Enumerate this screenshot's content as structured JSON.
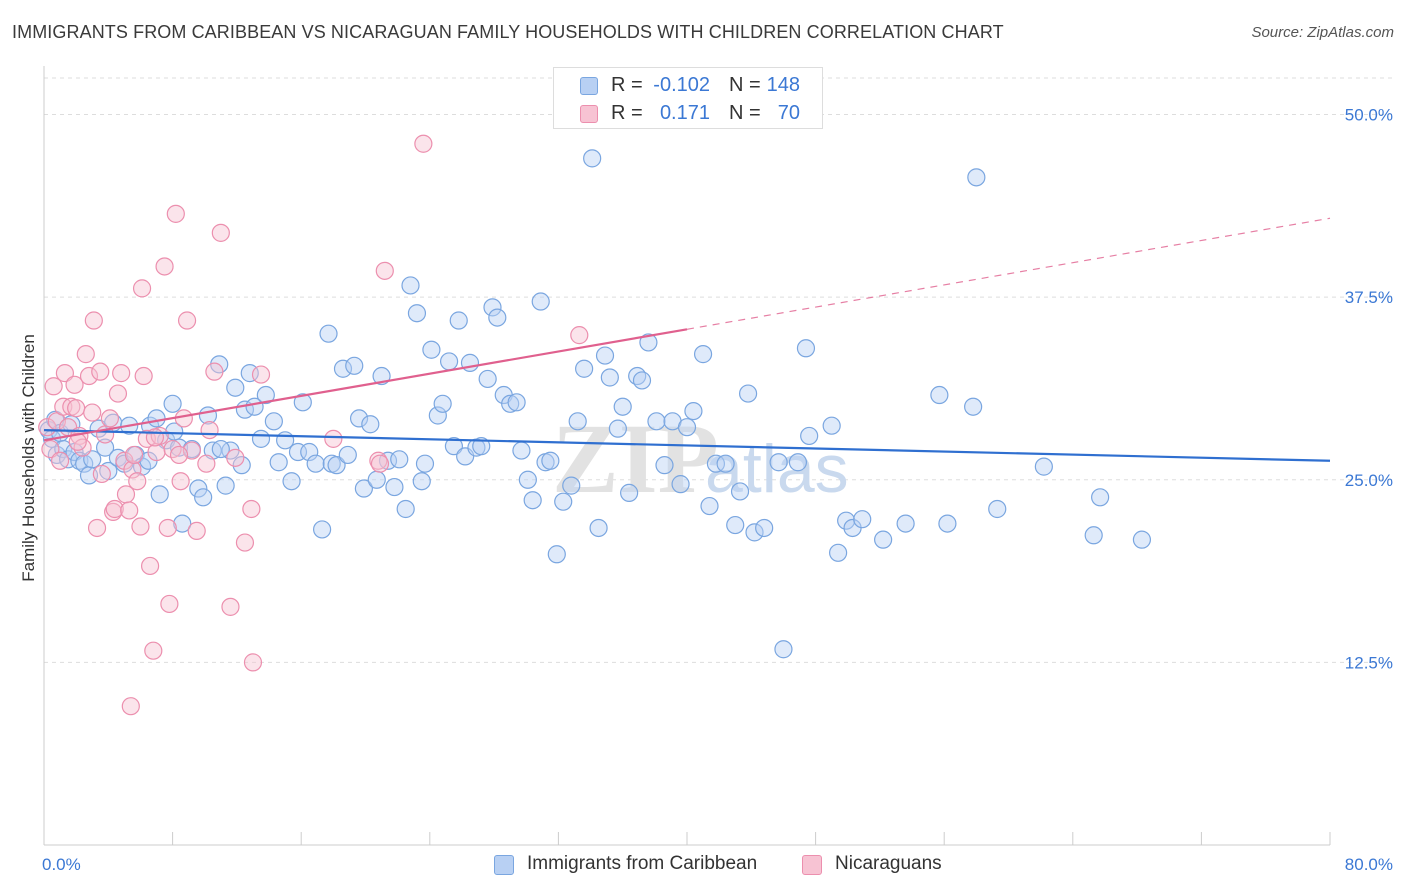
{
  "header": {
    "title": "IMMIGRANTS FROM CARIBBEAN VS NICARAGUAN FAMILY HOUSEHOLDS WITH CHILDREN CORRELATION CHART",
    "source": "Source: ZipAtlas.com"
  },
  "watermark": {
    "zip": "ZIP",
    "atlas": "atlas"
  },
  "legend_top": {
    "rows": [
      {
        "r_label": "R =",
        "r_value": "-0.102",
        "n_label": "N =",
        "n_value": "148"
      },
      {
        "r_label": "R =",
        "r_value": "0.171",
        "n_label": "N =",
        "n_value": "70"
      }
    ]
  },
  "legend_bottom": {
    "items": [
      {
        "label": "Immigrants from Caribbean"
      },
      {
        "label": "Nicaraguans"
      }
    ]
  },
  "colors": {
    "blue_fill": "#b8d0f3",
    "blue_stroke": "#7aa6e0",
    "blue_line": "#2f6fd0",
    "pink_fill": "#f7c3d3",
    "pink_stroke": "#ec8fae",
    "pink_line": "#e0608e",
    "grid": "#dddddd",
    "axis_text": "#3b78d4"
  },
  "chart_data": {
    "type": "scatter",
    "title": "IMMIGRANTS FROM CARIBBEAN VS NICARAGUAN FAMILY HOUSEHOLDS WITH CHILDREN CORRELATION CHART",
    "xlabel": "",
    "ylabel": "Family Households with Children",
    "xlim": [
      0,
      80
    ],
    "ylim": [
      0,
      52.5
    ],
    "x_tick_labels": [
      "0.0%",
      "80.0%"
    ],
    "y_ticks": [
      12.5,
      25.0,
      37.5,
      50.0
    ],
    "y_tick_labels": [
      "12.5%",
      "25.0%",
      "37.5%",
      "50.0%"
    ],
    "grid": true,
    "series": [
      {
        "name": "Immigrants from Caribbean",
        "R": -0.102,
        "N": 148,
        "trend": {
          "x": [
            0,
            80
          ],
          "y": [
            28.4,
            26.3
          ],
          "dashed_from": null
        },
        "points": [
          [
            0.3,
            28.4
          ],
          [
            0.5,
            27.8
          ],
          [
            0.7,
            29.1
          ],
          [
            0.8,
            26.7
          ],
          [
            1.0,
            28.2
          ],
          [
            1.2,
            27.1
          ],
          [
            1.5,
            26.4
          ],
          [
            1.7,
            28.8
          ],
          [
            1.9,
            26.9
          ],
          [
            2.2,
            26.3
          ],
          [
            2.5,
            26.1
          ],
          [
            2.8,
            25.3
          ],
          [
            3.0,
            26.4
          ],
          [
            3.4,
            28.5
          ],
          [
            3.8,
            27.2
          ],
          [
            4.0,
            25.6
          ],
          [
            4.3,
            28.9
          ],
          [
            4.6,
            26.5
          ],
          [
            5.0,
            26.1
          ],
          [
            5.3,
            28.7
          ],
          [
            5.7,
            26.7
          ],
          [
            6.1,
            25.9
          ],
          [
            6.6,
            28.7
          ],
          [
            7.0,
            29.2
          ],
          [
            7.2,
            24.0
          ],
          [
            7.6,
            27.7
          ],
          [
            8.0,
            30.2
          ],
          [
            8.4,
            27.2
          ],
          [
            8.6,
            22.0
          ],
          [
            9.2,
            27.1
          ],
          [
            9.6,
            24.4
          ],
          [
            9.9,
            23.8
          ],
          [
            10.2,
            29.4
          ],
          [
            10.5,
            27.0
          ],
          [
            10.9,
            32.9
          ],
          [
            11.3,
            24.6
          ],
          [
            11.6,
            27.0
          ],
          [
            11.9,
            31.3
          ],
          [
            12.3,
            26.0
          ],
          [
            12.5,
            29.8
          ],
          [
            12.8,
            32.3
          ],
          [
            13.1,
            30.0
          ],
          [
            13.5,
            27.8
          ],
          [
            13.8,
            30.8
          ],
          [
            14.3,
            29.0
          ],
          [
            14.6,
            26.2
          ],
          [
            15.0,
            27.7
          ],
          [
            15.4,
            24.9
          ],
          [
            15.8,
            26.9
          ],
          [
            16.1,
            30.3
          ],
          [
            16.5,
            26.9
          ],
          [
            16.9,
            26.1
          ],
          [
            17.3,
            21.6
          ],
          [
            17.7,
            35.0
          ],
          [
            17.9,
            26.1
          ],
          [
            18.2,
            26.0
          ],
          [
            18.6,
            32.6
          ],
          [
            18.9,
            26.7
          ],
          [
            19.3,
            32.8
          ],
          [
            19.6,
            29.2
          ],
          [
            19.9,
            24.4
          ],
          [
            20.3,
            28.8
          ],
          [
            20.7,
            25.0
          ],
          [
            21.0,
            32.1
          ],
          [
            21.4,
            26.3
          ],
          [
            21.8,
            24.5
          ],
          [
            22.1,
            26.4
          ],
          [
            22.5,
            23.0
          ],
          [
            22.8,
            38.3
          ],
          [
            23.2,
            36.4
          ],
          [
            23.5,
            24.9
          ],
          [
            23.7,
            26.1
          ],
          [
            24.1,
            33.9
          ],
          [
            24.5,
            29.4
          ],
          [
            24.8,
            30.2
          ],
          [
            25.2,
            33.1
          ],
          [
            25.5,
            27.3
          ],
          [
            25.8,
            35.9
          ],
          [
            26.2,
            26.6
          ],
          [
            26.5,
            33.0
          ],
          [
            26.9,
            27.2
          ],
          [
            27.2,
            27.3
          ],
          [
            27.6,
            31.9
          ],
          [
            27.9,
            36.8
          ],
          [
            28.2,
            36.1
          ],
          [
            28.6,
            30.8
          ],
          [
            29.0,
            30.2
          ],
          [
            29.4,
            30.3
          ],
          [
            29.7,
            27.0
          ],
          [
            30.1,
            25.0
          ],
          [
            30.4,
            23.6
          ],
          [
            30.9,
            37.2
          ],
          [
            31.2,
            26.2
          ],
          [
            31.5,
            26.3
          ],
          [
            31.9,
            19.9
          ],
          [
            32.3,
            23.5
          ],
          [
            32.8,
            24.6
          ],
          [
            33.2,
            29.0
          ],
          [
            33.6,
            32.6
          ],
          [
            34.1,
            47.0
          ],
          [
            34.5,
            21.7
          ],
          [
            34.9,
            33.5
          ],
          [
            35.2,
            32.0
          ],
          [
            35.7,
            28.5
          ],
          [
            36.0,
            30.0
          ],
          [
            36.4,
            24.1
          ],
          [
            36.9,
            32.1
          ],
          [
            37.2,
            31.8
          ],
          [
            37.6,
            34.4
          ],
          [
            38.1,
            29.0
          ],
          [
            38.6,
            26.0
          ],
          [
            39.1,
            29.0
          ],
          [
            39.6,
            24.7
          ],
          [
            40.0,
            28.6
          ],
          [
            40.4,
            29.7
          ],
          [
            41.0,
            33.6
          ],
          [
            41.4,
            23.2
          ],
          [
            41.8,
            26.1
          ],
          [
            42.4,
            26.1
          ],
          [
            43.0,
            21.9
          ],
          [
            43.3,
            24.2
          ],
          [
            43.8,
            30.9
          ],
          [
            44.2,
            21.4
          ],
          [
            44.8,
            21.7
          ],
          [
            45.7,
            26.2
          ],
          [
            46.0,
            13.4
          ],
          [
            46.9,
            26.2
          ],
          [
            47.4,
            34.0
          ],
          [
            47.6,
            28.0
          ],
          [
            49.0,
            28.7
          ],
          [
            49.4,
            20.0
          ],
          [
            49.9,
            22.2
          ],
          [
            50.3,
            21.7
          ],
          [
            50.9,
            22.3
          ],
          [
            52.2,
            20.9
          ],
          [
            53.6,
            22.0
          ],
          [
            55.7,
            30.8
          ],
          [
            56.2,
            22.0
          ],
          [
            57.8,
            30.0
          ],
          [
            58.0,
            45.7
          ],
          [
            59.3,
            23.0
          ],
          [
            62.2,
            25.9
          ],
          [
            65.3,
            21.2
          ],
          [
            65.7,
            23.8
          ],
          [
            68.3,
            20.9
          ],
          [
            8.1,
            28.3
          ],
          [
            11.0,
            27.1
          ],
          [
            6.5,
            26.3
          ]
        ]
      },
      {
        "name": "Nicaraguans",
        "R": 0.171,
        "N": 70,
        "trend": {
          "x": [
            0,
            80
          ],
          "y": [
            27.7,
            42.9
          ],
          "dashed_from": 40.0
        },
        "points": [
          [
            0.2,
            28.6
          ],
          [
            0.4,
            27.1
          ],
          [
            0.6,
            31.4
          ],
          [
            0.8,
            29.0
          ],
          [
            1.0,
            26.3
          ],
          [
            1.2,
            30.0
          ],
          [
            1.3,
            32.3
          ],
          [
            1.5,
            28.6
          ],
          [
            1.7,
            30.0
          ],
          [
            1.9,
            31.5
          ],
          [
            2.0,
            29.9
          ],
          [
            2.2,
            28.0
          ],
          [
            2.4,
            27.2
          ],
          [
            2.6,
            33.6
          ],
          [
            2.8,
            32.1
          ],
          [
            3.0,
            29.6
          ],
          [
            3.1,
            35.9
          ],
          [
            3.3,
            21.7
          ],
          [
            3.5,
            32.4
          ],
          [
            3.6,
            25.4
          ],
          [
            3.8,
            28.1
          ],
          [
            4.1,
            29.2
          ],
          [
            4.3,
            22.8
          ],
          [
            4.4,
            23.0
          ],
          [
            4.6,
            30.9
          ],
          [
            4.8,
            32.3
          ],
          [
            5.0,
            26.3
          ],
          [
            5.1,
            24.0
          ],
          [
            5.3,
            22.9
          ],
          [
            5.5,
            25.7
          ],
          [
            5.6,
            26.7
          ],
          [
            5.8,
            24.9
          ],
          [
            6.0,
            21.8
          ],
          [
            6.1,
            38.1
          ],
          [
            6.2,
            32.1
          ],
          [
            6.4,
            27.8
          ],
          [
            6.6,
            19.1
          ],
          [
            6.8,
            13.3
          ],
          [
            7.0,
            26.9
          ],
          [
            7.2,
            28.0
          ],
          [
            7.5,
            39.6
          ],
          [
            7.7,
            21.7
          ],
          [
            7.8,
            16.5
          ],
          [
            8.0,
            27.1
          ],
          [
            8.2,
            43.2
          ],
          [
            8.5,
            24.9
          ],
          [
            8.7,
            29.2
          ],
          [
            8.9,
            35.9
          ],
          [
            9.2,
            27.0
          ],
          [
            9.5,
            21.5
          ],
          [
            10.1,
            26.1
          ],
          [
            10.3,
            28.4
          ],
          [
            10.6,
            32.4
          ],
          [
            11.0,
            41.9
          ],
          [
            11.6,
            16.3
          ],
          [
            11.9,
            26.5
          ],
          [
            12.5,
            20.7
          ],
          [
            12.9,
            23.0
          ],
          [
            13.0,
            12.5
          ],
          [
            13.5,
            32.2
          ],
          [
            18.0,
            27.8
          ],
          [
            20.8,
            26.3
          ],
          [
            20.9,
            26.1
          ],
          [
            21.2,
            39.3
          ],
          [
            23.6,
            48.0
          ],
          [
            33.3,
            34.9
          ],
          [
            8.4,
            26.7
          ],
          [
            5.4,
            9.5
          ],
          [
            2.1,
            27.6
          ],
          [
            6.9,
            27.9
          ]
        ]
      }
    ]
  }
}
